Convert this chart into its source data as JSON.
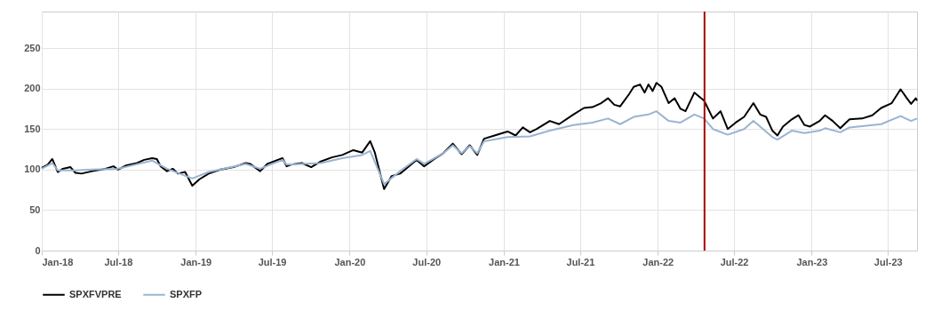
{
  "chart_data": {
    "type": "line",
    "xlim": [
      "2018-01-01",
      "2023-09-08"
    ],
    "ylim": [
      0,
      295
    ],
    "yticks": [
      0,
      50,
      100,
      150,
      200,
      250
    ],
    "xticks": [
      {
        "value": "2018-01-01",
        "label": "Jan-18"
      },
      {
        "value": "2018-07-01",
        "label": "Jul-18"
      },
      {
        "value": "2019-01-01",
        "label": "Jan-19"
      },
      {
        "value": "2019-07-01",
        "label": "Jul-19"
      },
      {
        "value": "2020-01-01",
        "label": "Jan-20"
      },
      {
        "value": "2020-07-01",
        "label": "Jul-20"
      },
      {
        "value": "2021-01-01",
        "label": "Jan-21"
      },
      {
        "value": "2021-07-01",
        "label": "Jul-21"
      },
      {
        "value": "2022-01-01",
        "label": "Jan-22"
      },
      {
        "value": "2022-07-01",
        "label": "Jul-22"
      },
      {
        "value": "2023-01-01",
        "label": "Jan-23"
      },
      {
        "value": "2023-07-01",
        "label": "Jul-23"
      }
    ],
    "grid": true,
    "legend": "bottom",
    "ref_lines": [
      {
        "axis": "x",
        "value": "2022-04-22",
        "color": "#aa0000"
      }
    ],
    "series": [
      {
        "name": "SPXFVPRE",
        "color": "#000000",
        "x": [
          "2018-01-01",
          "2018-01-15",
          "2018-01-26",
          "2018-02-08",
          "2018-02-20",
          "2018-03-10",
          "2018-03-22",
          "2018-04-05",
          "2018-05-01",
          "2018-06-01",
          "2018-06-20",
          "2018-07-01",
          "2018-07-20",
          "2018-08-15",
          "2018-09-01",
          "2018-09-20",
          "2018-10-01",
          "2018-10-10",
          "2018-10-25",
          "2018-11-08",
          "2018-11-20",
          "2018-12-07",
          "2018-12-24",
          "2019-01-10",
          "2019-02-01",
          "2019-03-01",
          "2019-04-01",
          "2019-04-30",
          "2019-05-10",
          "2019-06-03",
          "2019-06-20",
          "2019-07-26",
          "2019-08-05",
          "2019-08-15",
          "2019-09-10",
          "2019-10-02",
          "2019-10-25",
          "2019-11-20",
          "2019-12-15",
          "2020-01-10",
          "2020-01-31",
          "2020-02-19",
          "2020-03-01",
          "2020-03-23",
          "2020-04-10",
          "2020-04-30",
          "2020-06-08",
          "2020-06-26",
          "2020-07-20",
          "2020-08-10",
          "2020-09-02",
          "2020-09-23",
          "2020-10-12",
          "2020-10-30",
          "2020-11-15",
          "2020-12-10",
          "2021-01-10",
          "2021-01-29",
          "2021-02-15",
          "2021-03-04",
          "2021-03-20",
          "2021-04-20",
          "2021-05-12",
          "2021-06-15",
          "2021-07-10",
          "2021-07-30",
          "2021-08-20",
          "2021-09-05",
          "2021-09-20",
          "2021-10-04",
          "2021-10-25",
          "2021-11-05",
          "2021-11-20",
          "2021-12-01",
          "2021-12-10",
          "2021-12-20",
          "2021-12-29",
          "2022-01-10",
          "2022-01-27",
          "2022-02-10",
          "2022-02-24",
          "2022-03-08",
          "2022-03-29",
          "2022-04-21",
          "2022-05-12",
          "2022-05-30",
          "2022-06-16",
          "2022-07-05",
          "2022-07-25",
          "2022-08-16",
          "2022-09-01",
          "2022-09-15",
          "2022-09-30",
          "2022-10-12",
          "2022-10-25",
          "2022-11-15",
          "2022-12-01",
          "2022-12-15",
          "2022-12-28",
          "2023-01-20",
          "2023-02-02",
          "2023-02-20",
          "2023-03-10",
          "2023-04-01",
          "2023-05-01",
          "2023-05-25",
          "2023-06-15",
          "2023-07-10",
          "2023-07-31",
          "2023-08-15",
          "2023-08-25",
          "2023-09-05",
          "2023-09-08"
        ],
        "values": [
          102,
          106,
          113,
          97,
          101,
          103,
          96,
          95,
          98,
          101,
          104,
          100,
          105,
          108,
          112,
          114,
          113,
          104,
          98,
          101,
          95,
          97,
          80,
          88,
          95,
          100,
          103,
          108,
          107,
          98,
          107,
          114,
          104,
          106,
          108,
          103,
          110,
          115,
          118,
          124,
          121,
          135,
          121,
          76,
          92,
          95,
          112,
          104,
          113,
          120,
          132,
          119,
          130,
          118,
          138,
          142,
          147,
          142,
          152,
          146,
          150,
          160,
          156,
          168,
          176,
          177,
          182,
          188,
          180,
          178,
          193,
          202,
          205,
          195,
          205,
          197,
          207,
          202,
          182,
          188,
          175,
          172,
          195,
          185,
          163,
          172,
          150,
          158,
          165,
          182,
          168,
          165,
          148,
          142,
          153,
          162,
          167,
          155,
          153,
          160,
          167,
          160,
          151,
          162,
          163,
          167,
          176,
          182,
          199,
          188,
          181,
          188,
          185
        ]
      },
      {
        "name": "SPXFP",
        "color": "#9ab4d2",
        "x": [
          "2018-01-01",
          "2018-01-26",
          "2018-02-08",
          "2018-03-22",
          "2018-05-01",
          "2018-07-01",
          "2018-09-20",
          "2018-10-25",
          "2018-12-24",
          "2019-02-01",
          "2019-04-30",
          "2019-06-03",
          "2019-07-26",
          "2019-08-05",
          "2019-10-25",
          "2019-12-15",
          "2020-01-31",
          "2020-02-19",
          "2020-03-23",
          "2020-04-30",
          "2020-06-08",
          "2020-06-26",
          "2020-08-10",
          "2020-09-02",
          "2020-09-23",
          "2020-10-12",
          "2020-10-30",
          "2020-11-15",
          "2021-01-10",
          "2021-03-04",
          "2021-04-20",
          "2021-06-15",
          "2021-07-30",
          "2021-09-05",
          "2021-10-04",
          "2021-11-05",
          "2021-12-10",
          "2021-12-29",
          "2022-01-27",
          "2022-02-24",
          "2022-03-29",
          "2022-04-21",
          "2022-05-12",
          "2022-06-16",
          "2022-07-25",
          "2022-08-16",
          "2022-09-30",
          "2022-10-12",
          "2022-11-15",
          "2022-12-15",
          "2023-01-20",
          "2023-02-02",
          "2023-03-10",
          "2023-04-01",
          "2023-06-15",
          "2023-07-31",
          "2023-08-25",
          "2023-09-08"
        ],
        "values": [
          101,
          108,
          99,
          99,
          100,
          101,
          111,
          101,
          89,
          97,
          107,
          101,
          112,
          106,
          108,
          114,
          118,
          123,
          82,
          98,
          113,
          107,
          120,
          130,
          120,
          129,
          120,
          135,
          140,
          141,
          148,
          155,
          158,
          163,
          156,
          165,
          168,
          172,
          160,
          158,
          168,
          163,
          150,
          143,
          150,
          160,
          140,
          137,
          148,
          145,
          148,
          151,
          146,
          152,
          156,
          166,
          160,
          163
        ]
      }
    ]
  }
}
